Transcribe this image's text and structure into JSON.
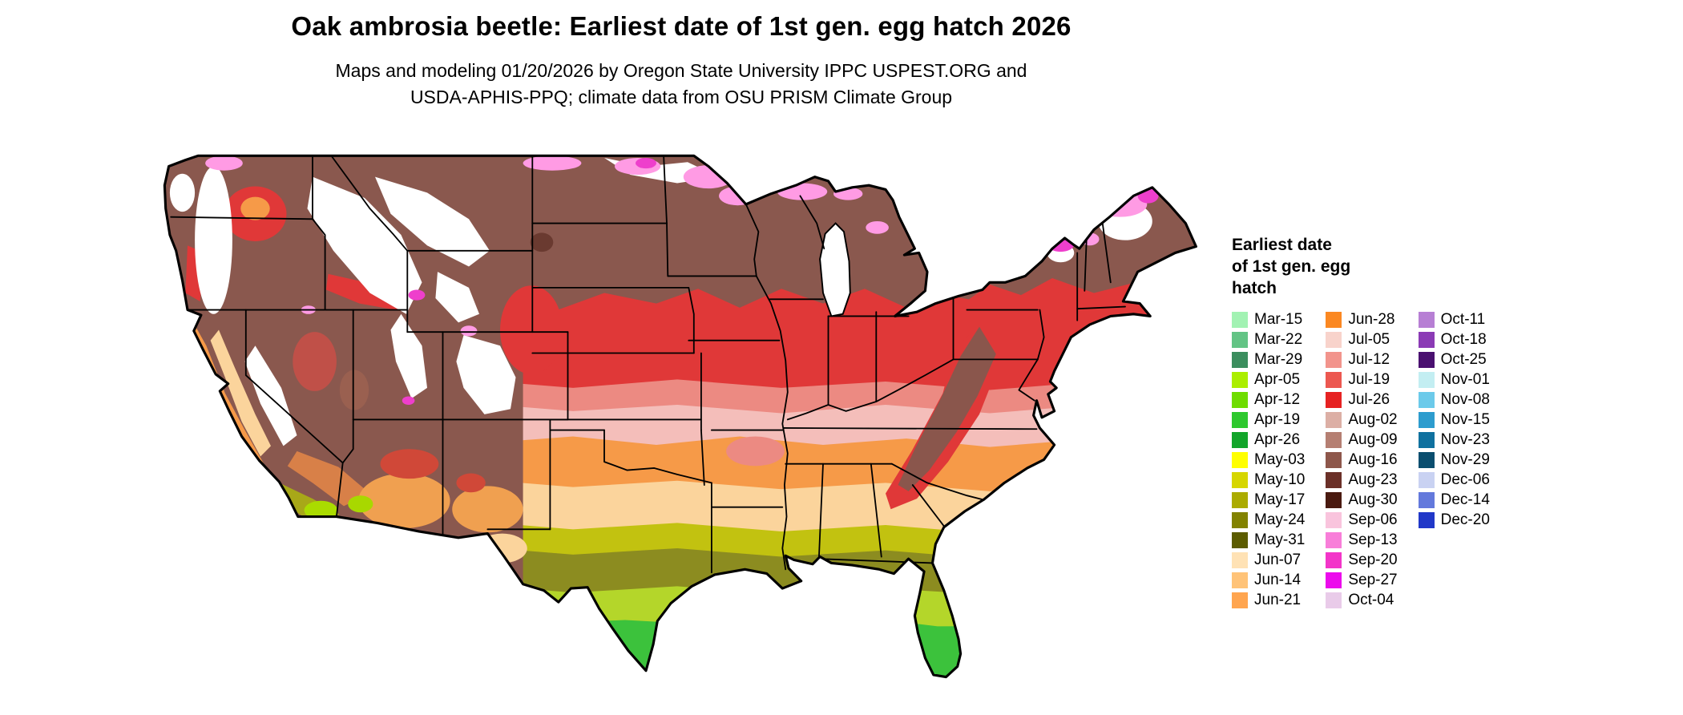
{
  "title": "Oak ambrosia beetle: Earliest date of 1st gen. egg hatch 2026",
  "subtitle": {
    "line1": "Maps and modeling 01/20/2026 by Oregon State University IPPC USPEST.ORG and",
    "line2": "USDA-APHIS-PPQ; climate data from OSU PRISM Climate Group"
  },
  "legend": {
    "title_lines": [
      "Earliest date",
      "of 1st gen. egg",
      "hatch"
    ],
    "columns": [
      [
        {
          "label": "Mar-15",
          "color": "#A2F2B3"
        },
        {
          "label": "Mar-22",
          "color": "#63C485"
        },
        {
          "label": "Mar-29",
          "color": "#3B8E5E"
        },
        {
          "label": "Apr-05",
          "color": "#ABEE00"
        },
        {
          "label": "Apr-12",
          "color": "#6FDC00"
        },
        {
          "label": "Apr-19",
          "color": "#2EC82E"
        },
        {
          "label": "Apr-26",
          "color": "#12A52A"
        },
        {
          "label": "May-03",
          "color": "#FFFF00"
        },
        {
          "label": "May-10",
          "color": "#D6D600"
        },
        {
          "label": "May-17",
          "color": "#ABAB00"
        },
        {
          "label": "May-24",
          "color": "#828200"
        },
        {
          "label": "May-31",
          "color": "#5C5C00"
        },
        {
          "label": "Jun-07",
          "color": "#FFE2B5"
        },
        {
          "label": "Jun-14",
          "color": "#FFC378"
        },
        {
          "label": "Jun-21",
          "color": "#FFA54F"
        }
      ],
      [
        {
          "label": "Jun-28",
          "color": "#FB8822"
        },
        {
          "label": "Jul-05",
          "color": "#F8D3CB"
        },
        {
          "label": "Jul-12",
          "color": "#F2948C"
        },
        {
          "label": "Jul-19",
          "color": "#EC5850"
        },
        {
          "label": "Jul-26",
          "color": "#E62222"
        },
        {
          "label": "Aug-02",
          "color": "#DCAFA5"
        },
        {
          "label": "Aug-09",
          "color": "#B57F72"
        },
        {
          "label": "Aug-16",
          "color": "#8E574B"
        },
        {
          "label": "Aug-23",
          "color": "#6B3028"
        },
        {
          "label": "Aug-30",
          "color": "#4A1A10"
        },
        {
          "label": "Sep-06",
          "color": "#F9C4DD"
        },
        {
          "label": "Sep-13",
          "color": "#F87ED9"
        },
        {
          "label": "Sep-20",
          "color": "#F335C9"
        },
        {
          "label": "Sep-27",
          "color": "#EC0BEC"
        },
        {
          "label": "Oct-04",
          "color": "#E9CBE9"
        }
      ],
      [
        {
          "label": "Oct-11",
          "color": "#B77FD4"
        },
        {
          "label": "Oct-18",
          "color": "#8B3BB5"
        },
        {
          "label": "Oct-25",
          "color": "#4A1070"
        },
        {
          "label": "Nov-01",
          "color": "#C3EEF2"
        },
        {
          "label": "Nov-08",
          "color": "#6CCAEA"
        },
        {
          "label": "Nov-15",
          "color": "#2D9CCE"
        },
        {
          "label": "Nov-23",
          "color": "#10719F"
        },
        {
          "label": "Nov-29",
          "color": "#0A4E6F"
        },
        {
          "label": "Dec-06",
          "color": "#C9D2F2"
        },
        {
          "label": "Dec-14",
          "color": "#6379DC"
        },
        {
          "label": "Dec-20",
          "color": "#2138C8"
        }
      ]
    ]
  }
}
